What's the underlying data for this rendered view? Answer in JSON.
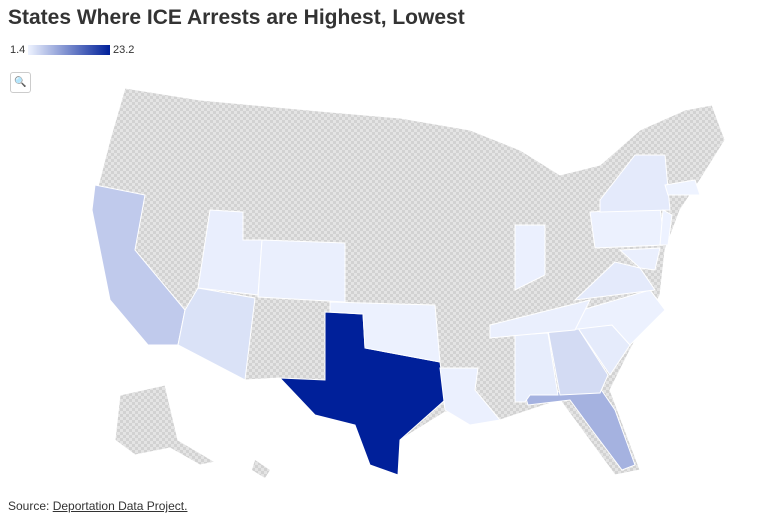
{
  "title": "States Where ICE Arrests are Highest, Lowest",
  "legend": {
    "min": 1.4,
    "max": 23.2,
    "min_color": "#eef3ff",
    "max_color": "#00209a"
  },
  "values": [
    5.6,
    3.2,
    1.9,
    1.8,
    23.2,
    1.6,
    1.7,
    8.1,
    3.9,
    2.0,
    2.2,
    1.6,
    1.8,
    2.3,
    1.7,
    1.6,
    2.3,
    1.5,
    1.4,
    1.8
  ],
  "source": {
    "label": "Source:",
    "link": "Deportation Data Project."
  }
}
